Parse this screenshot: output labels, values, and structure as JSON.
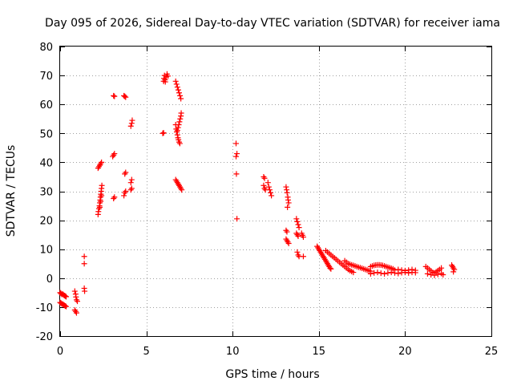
{
  "chart_data": {
    "type": "scatter",
    "title": "Day 095 of 2026, Sidereal Day-to-day VTEC variation (SDTVAR) for receiver iama",
    "xlabel": "GPS time / hours",
    "ylabel": "SDTVAR / TECUs",
    "xlim": [
      0,
      25
    ],
    "ylim": [
      -20,
      80
    ],
    "xticks": [
      0,
      5,
      10,
      15,
      20,
      25
    ],
    "yticks": [
      -20,
      -10,
      0,
      10,
      20,
      30,
      40,
      50,
      60,
      70,
      80
    ],
    "xtick_labels": [
      "0",
      "5",
      "10",
      "15",
      "20",
      "25"
    ],
    "ytick_labels": [
      "-20",
      "-10",
      "0",
      "10",
      "20",
      "30",
      "40",
      "50",
      "60",
      "70",
      "80"
    ],
    "grid": true,
    "marker": "+",
    "color": "#ff0000",
    "series": [
      {
        "name": "SDTVAR",
        "points": [
          [
            0.0,
            -5.0
          ],
          [
            0.05,
            -5.3
          ],
          [
            0.1,
            -5.6
          ],
          [
            0.15,
            -5.5
          ],
          [
            0.2,
            -5.8
          ],
          [
            0.25,
            -6.0
          ],
          [
            0.3,
            -6.2
          ],
          [
            0.35,
            -6.4
          ],
          [
            0.0,
            -8.4
          ],
          [
            0.05,
            -8.6
          ],
          [
            0.1,
            -8.9
          ],
          [
            0.15,
            -9.0
          ],
          [
            0.2,
            -9.2
          ],
          [
            0.25,
            -9.4
          ],
          [
            0.3,
            -9.6
          ],
          [
            0.35,
            -9.8
          ],
          [
            0.85,
            -4.5
          ],
          [
            0.9,
            -5.5
          ],
          [
            0.92,
            -6.5
          ],
          [
            0.95,
            -7.5
          ],
          [
            1.0,
            -8.0
          ],
          [
            0.85,
            -11.0
          ],
          [
            0.9,
            -11.5
          ],
          [
            0.95,
            -12.0
          ],
          [
            1.4,
            7.5
          ],
          [
            1.4,
            5.0
          ],
          [
            1.4,
            -3.5
          ],
          [
            1.42,
            -4.5
          ],
          [
            2.2,
            22.0
          ],
          [
            2.22,
            23.0
          ],
          [
            2.25,
            24.0
          ],
          [
            2.28,
            25.0
          ],
          [
            2.3,
            26.0
          ],
          [
            2.32,
            27.0
          ],
          [
            2.34,
            28.0
          ],
          [
            2.36,
            29.0
          ],
          [
            2.38,
            30.0
          ],
          [
            2.4,
            31.0
          ],
          [
            2.42,
            32.0
          ],
          [
            2.3,
            24.5
          ],
          [
            2.35,
            26.5
          ],
          [
            2.4,
            28.5
          ],
          [
            2.2,
            38.0
          ],
          [
            2.25,
            38.5
          ],
          [
            2.3,
            39.0
          ],
          [
            2.35,
            39.5
          ],
          [
            2.4,
            40.0
          ],
          [
            3.1,
            27.5
          ],
          [
            3.15,
            28.0
          ],
          [
            3.05,
            42.0
          ],
          [
            3.1,
            42.5
          ],
          [
            3.15,
            43.0
          ],
          [
            3.1,
            63.0
          ],
          [
            3.15,
            62.8
          ],
          [
            3.7,
            28.5
          ],
          [
            3.75,
            29.5
          ],
          [
            3.8,
            30.0
          ],
          [
            3.75,
            36.0
          ],
          [
            3.8,
            36.5
          ],
          [
            3.7,
            63.0
          ],
          [
            3.75,
            62.8
          ],
          [
            3.8,
            62.5
          ],
          [
            4.1,
            30.5
          ],
          [
            4.15,
            31.0
          ],
          [
            4.1,
            33.0
          ],
          [
            4.15,
            34.0
          ],
          [
            4.1,
            52.5
          ],
          [
            4.15,
            53.5
          ],
          [
            4.18,
            54.5
          ],
          [
            5.95,
            50.0
          ],
          [
            6.0,
            50.2
          ],
          [
            6.02,
            69.0
          ],
          [
            6.05,
            70.0
          ],
          [
            6.08,
            68.5
          ],
          [
            6.1,
            67.8
          ],
          [
            6.15,
            69.5
          ],
          [
            6.2,
            70.5
          ],
          [
            6.25,
            69.8
          ],
          [
            6.0,
            68.0
          ],
          [
            6.7,
            68.0
          ],
          [
            6.75,
            67.0
          ],
          [
            6.8,
            66.0
          ],
          [
            6.85,
            65.0
          ],
          [
            6.9,
            64.0
          ],
          [
            6.95,
            63.0
          ],
          [
            7.0,
            62.0
          ],
          [
            6.7,
            53.0
          ],
          [
            6.73,
            51.5
          ],
          [
            6.76,
            50.5
          ],
          [
            6.8,
            49.5
          ],
          [
            6.83,
            48.5
          ],
          [
            6.86,
            47.8
          ],
          [
            6.9,
            47.0
          ],
          [
            6.94,
            46.5
          ],
          [
            6.8,
            51.0
          ],
          [
            6.84,
            52.0
          ],
          [
            6.88,
            53.0
          ],
          [
            6.92,
            54.0
          ],
          [
            6.96,
            55.0
          ],
          [
            7.0,
            56.0
          ],
          [
            7.02,
            57.0
          ],
          [
            6.7,
            34.0
          ],
          [
            6.75,
            33.5
          ],
          [
            6.8,
            33.0
          ],
          [
            6.85,
            32.5
          ],
          [
            6.9,
            32.0
          ],
          [
            6.95,
            31.5
          ],
          [
            7.0,
            31.0
          ],
          [
            7.05,
            30.5
          ],
          [
            10.2,
            46.5
          ],
          [
            10.25,
            43.0
          ],
          [
            10.2,
            42.0
          ],
          [
            10.22,
            36.0
          ],
          [
            10.25,
            20.5
          ],
          [
            11.8,
            35.0
          ],
          [
            11.85,
            34.5
          ],
          [
            11.8,
            32.0
          ],
          [
            11.85,
            31.0
          ],
          [
            11.9,
            30.5
          ],
          [
            12.05,
            33.0
          ],
          [
            12.1,
            31.5
          ],
          [
            12.15,
            30.5
          ],
          [
            12.2,
            29.5
          ],
          [
            12.25,
            28.5
          ],
          [
            13.1,
            31.5
          ],
          [
            13.13,
            30.5
          ],
          [
            13.16,
            29.5
          ],
          [
            13.2,
            28.0
          ],
          [
            13.22,
            27.0
          ],
          [
            13.25,
            26.0
          ],
          [
            13.18,
            24.5
          ],
          [
            13.1,
            16.5
          ],
          [
            13.15,
            16.0
          ],
          [
            13.1,
            13.5
          ],
          [
            13.15,
            13.0
          ],
          [
            13.2,
            12.5
          ],
          [
            13.25,
            12.0
          ],
          [
            13.7,
            20.5
          ],
          [
            13.75,
            19.5
          ],
          [
            13.8,
            18.5
          ],
          [
            13.85,
            17.5
          ],
          [
            13.7,
            15.5
          ],
          [
            13.75,
            15.0
          ],
          [
            13.8,
            14.5
          ],
          [
            14.0,
            15.5
          ],
          [
            14.05,
            14.8
          ],
          [
            14.1,
            14.2
          ],
          [
            13.75,
            9.0
          ],
          [
            13.8,
            8.0
          ],
          [
            13.85,
            7.5
          ],
          [
            14.1,
            7.5
          ],
          [
            14.9,
            11.0
          ],
          [
            14.95,
            10.5
          ],
          [
            15.0,
            10.0
          ],
          [
            15.05,
            9.5
          ],
          [
            15.1,
            9.0
          ],
          [
            15.15,
            8.5
          ],
          [
            15.2,
            8.0
          ],
          [
            15.25,
            7.5
          ],
          [
            15.3,
            7.0
          ],
          [
            15.35,
            6.5
          ],
          [
            15.4,
            6.0
          ],
          [
            15.45,
            5.5
          ],
          [
            15.5,
            5.0
          ],
          [
            15.55,
            4.5
          ],
          [
            15.6,
            4.0
          ],
          [
            15.65,
            3.5
          ],
          [
            15.7,
            3.2
          ],
          [
            15.4,
            9.5
          ],
          [
            15.5,
            9.0
          ],
          [
            15.6,
            8.5
          ],
          [
            15.7,
            8.0
          ],
          [
            15.8,
            7.5
          ],
          [
            15.9,
            7.0
          ],
          [
            16.0,
            6.5
          ],
          [
            16.1,
            6.0
          ],
          [
            16.2,
            5.5
          ],
          [
            16.3,
            5.0
          ],
          [
            16.4,
            4.5
          ],
          [
            16.5,
            4.0
          ],
          [
            16.6,
            3.5
          ],
          [
            16.7,
            3.0
          ],
          [
            16.8,
            2.6
          ],
          [
            16.9,
            2.3
          ],
          [
            17.0,
            2.0
          ],
          [
            16.5,
            6.0
          ],
          [
            16.6,
            5.5
          ],
          [
            16.7,
            5.0
          ],
          [
            16.8,
            4.8
          ],
          [
            16.9,
            4.6
          ],
          [
            17.0,
            4.4
          ],
          [
            17.1,
            4.2
          ],
          [
            17.2,
            4.0
          ],
          [
            17.3,
            3.8
          ],
          [
            17.4,
            3.6
          ],
          [
            17.5,
            3.4
          ],
          [
            17.6,
            3.2
          ],
          [
            17.7,
            3.0
          ],
          [
            17.8,
            2.8
          ],
          [
            17.9,
            2.6
          ],
          [
            18.0,
            2.4
          ],
          [
            18.0,
            4.0
          ],
          [
            18.1,
            4.2
          ],
          [
            18.2,
            4.4
          ],
          [
            18.3,
            4.5
          ],
          [
            18.4,
            4.6
          ],
          [
            18.5,
            4.6
          ],
          [
            18.6,
            4.5
          ],
          [
            18.7,
            4.4
          ],
          [
            18.8,
            4.2
          ],
          [
            18.9,
            4.0
          ],
          [
            19.0,
            3.8
          ],
          [
            19.1,
            3.6
          ],
          [
            19.2,
            3.4
          ],
          [
            19.3,
            3.2
          ],
          [
            18.0,
            1.5
          ],
          [
            18.2,
            1.8
          ],
          [
            18.4,
            2.0
          ],
          [
            18.6,
            1.7
          ],
          [
            18.8,
            1.5
          ],
          [
            19.0,
            1.8
          ],
          [
            19.2,
            2.0
          ],
          [
            19.4,
            1.8
          ],
          [
            19.6,
            1.6
          ],
          [
            19.8,
            1.9
          ],
          [
            20.0,
            2.0
          ],
          [
            20.2,
            1.8
          ],
          [
            20.4,
            2.0
          ],
          [
            20.6,
            1.9
          ],
          [
            19.4,
            2.8
          ],
          [
            19.6,
            3.0
          ],
          [
            19.8,
            2.8
          ],
          [
            20.0,
            2.6
          ],
          [
            20.2,
            2.8
          ],
          [
            20.4,
            3.0
          ],
          [
            20.6,
            2.7
          ],
          [
            21.2,
            4.0
          ],
          [
            21.3,
            3.5
          ],
          [
            21.4,
            3.0
          ],
          [
            21.5,
            2.5
          ],
          [
            21.6,
            2.0
          ],
          [
            21.7,
            1.8
          ],
          [
            21.8,
            2.2
          ],
          [
            21.9,
            2.6
          ],
          [
            22.0,
            3.0
          ],
          [
            22.1,
            3.5
          ],
          [
            21.3,
            1.5
          ],
          [
            21.5,
            1.2
          ],
          [
            21.7,
            1.0
          ],
          [
            21.9,
            1.3
          ],
          [
            22.1,
            1.6
          ],
          [
            22.2,
            1.2
          ],
          [
            22.7,
            4.5
          ],
          [
            22.75,
            4.0
          ],
          [
            22.8,
            3.5
          ],
          [
            22.85,
            3.0
          ],
          [
            22.8,
            2.2
          ]
        ]
      }
    ]
  }
}
